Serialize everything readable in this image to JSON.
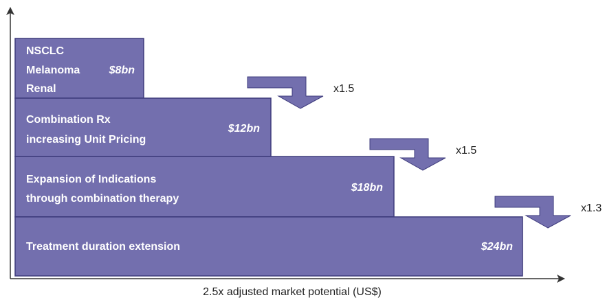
{
  "bars": [
    {
      "lines": [
        "NSCLC",
        "Melanoma",
        "Renal"
      ],
      "value": "$8bn"
    },
    {
      "lines": [
        "Combination Rx",
        "increasing Unit Pricing"
      ],
      "value": "$12bn"
    },
    {
      "lines": [
        "Expansion of Indications",
        "through combination therapy"
      ],
      "value": "$18bn"
    },
    {
      "lines": [
        "Treatment duration extension"
      ],
      "value": "$24bn"
    }
  ],
  "multipliers": [
    "x1.5",
    "x1.5",
    "x1.3"
  ],
  "x_axis_label": "2.5x adjusted market potential (US$)"
}
